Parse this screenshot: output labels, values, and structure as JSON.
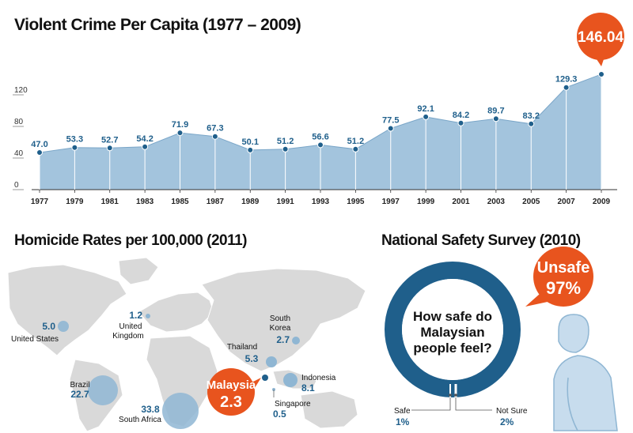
{
  "chart_data": [
    {
      "type": "area",
      "title": "Violent Crime Per Capita (1977 – 2009)",
      "yticks": [
        "0",
        "40",
        "80",
        "120"
      ],
      "ylim": [
        0,
        160
      ],
      "x": [
        1977,
        1979,
        1981,
        1983,
        1985,
        1987,
        1989,
        1991,
        1993,
        1995,
        1997,
        1999,
        2001,
        2003,
        2005,
        2007,
        2009
      ],
      "values": [
        47.0,
        53.3,
        52.7,
        54.2,
        71.9,
        67.3,
        50.1,
        51.2,
        56.6,
        51.2,
        77.5,
        92.1,
        84.2,
        89.7,
        83.2,
        129.3,
        146.04
      ],
      "labels": [
        "47.0",
        "53.3",
        "52.7",
        "54.2",
        "71.9",
        "67.3",
        "50.1",
        "51.2",
        "56.6",
        "51.2",
        "77.5",
        "92.1",
        "84.2",
        "89.7",
        "83.2",
        "129.3",
        "146.04"
      ],
      "grid": false,
      "highlight_color": "#e8541e",
      "area_color": "#a3c4dd",
      "dot_color": "#1f5f8b"
    },
    {
      "type": "scatter",
      "title": "Homicide Rates per 100,000 (2011)",
      "points": [
        {
          "country": "United States",
          "value": "5.0"
        },
        {
          "country": "United Kingdom",
          "value": "1.2"
        },
        {
          "country": "South Korea",
          "value": "2.7"
        },
        {
          "country": "Thailand",
          "value": "5.3"
        },
        {
          "country": "Brazil",
          "value": "22.7"
        },
        {
          "country": "South Africa",
          "value": "33.8"
        },
        {
          "country": "Indonesia",
          "value": "8.1"
        },
        {
          "country": "Singapore",
          "value": "0.5"
        },
        {
          "country": "Malaysia",
          "value": "2.3"
        }
      ]
    },
    {
      "type": "pie",
      "title": "National Safety Survey (2010)",
      "center_text": [
        "How safe do",
        "Malaysian",
        "people feel?"
      ],
      "slices": [
        {
          "label": "Unsafe",
          "value": 97,
          "display": "97%"
        },
        {
          "label": "Safe",
          "value": 1,
          "display": "1%"
        },
        {
          "label": "Not Sure",
          "value": 2,
          "display": "2%"
        }
      ]
    }
  ],
  "labels": {
    "us1": "United States",
    "uk1": "United",
    "uk2": "Kingdom",
    "sk1": "South",
    "sk2": "Korea",
    "malaysia_name": "Malaysia",
    "malaysia_value": "2.3",
    "unsafe_label": "Unsafe",
    "unsafe_value": "97%"
  }
}
